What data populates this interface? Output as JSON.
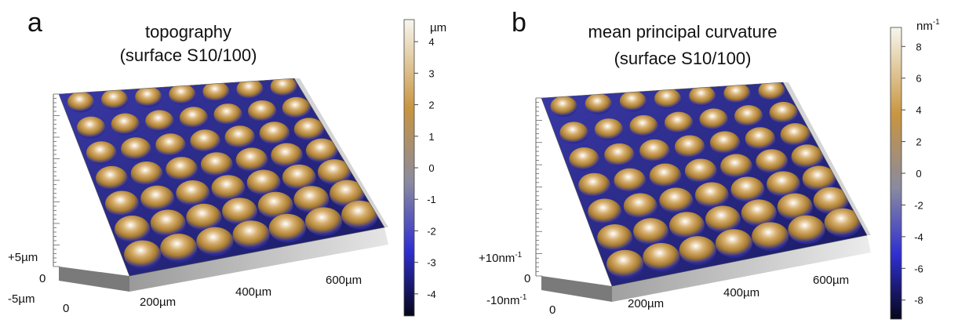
{
  "figure": {
    "panels": [
      {
        "letter": "a",
        "title_line1": "topography",
        "title_line2": "(surface S10/100)",
        "colorbar": {
          "unit": "µm",
          "ticks": [
            "4",
            "3",
            "2",
            "1",
            "0",
            "-1",
            "-2",
            "-3",
            "-4"
          ],
          "tick_values": [
            4,
            3,
            2,
            1,
            0,
            -1,
            -2,
            -3,
            -4
          ],
          "range": [
            -4.7,
            4.7
          ],
          "colors": [
            "#06061a",
            "#2f2fd0",
            "#8a8aa0",
            "#c89540",
            "#f7f6ee"
          ]
        },
        "z_axis": {
          "top": "+5µm",
          "mid": "0",
          "bottom": "-5µm"
        },
        "x_axis": {
          "labels": [
            "0",
            "200µm",
            "400µm",
            "600µm"
          ]
        }
      },
      {
        "letter": "b",
        "title_line1": "mean principal curvature",
        "title_line2": "(surface S10/100)",
        "colorbar": {
          "unit": "nm",
          "unit_sup": "-1",
          "ticks": [
            "8",
            "6",
            "4",
            "2",
            "0",
            "-2",
            "-4",
            "-6",
            "-8"
          ],
          "tick_values": [
            8,
            6,
            4,
            2,
            0,
            -2,
            -4,
            -6,
            -8
          ],
          "range": [
            -9.2,
            9.2
          ],
          "colors": [
            "#06061a",
            "#2f2fd0",
            "#8a8aa0",
            "#c89540",
            "#f7f6ee"
          ]
        },
        "z_axis": {
          "top": "+10nm",
          "top_sup": "-1",
          "mid": "0",
          "bottom": "-10nm",
          "bottom_sup": "-1"
        },
        "x_axis": {
          "labels": [
            "0",
            "200µm",
            "400µm",
            "600µm"
          ]
        }
      }
    ]
  }
}
